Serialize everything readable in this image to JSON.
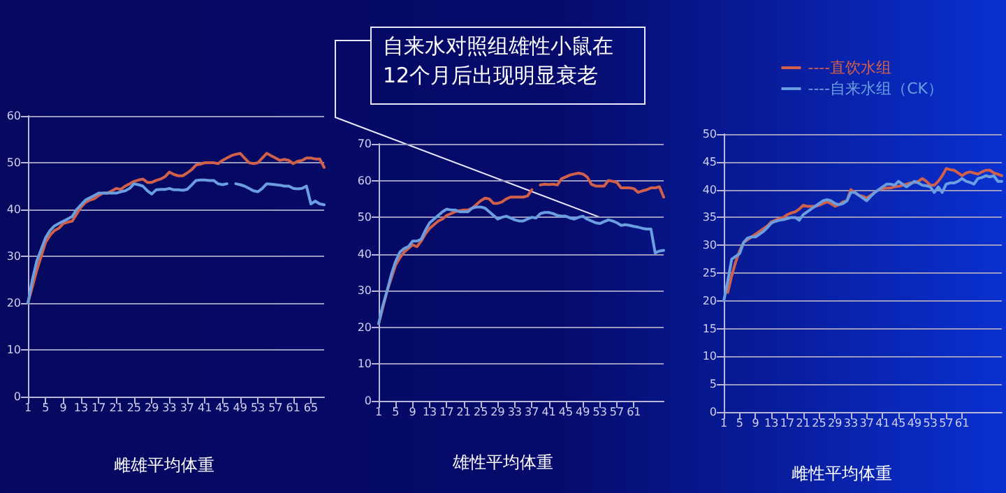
{
  "chart_data": [
    {
      "type": "line",
      "title": "雌雄平均体重",
      "categories": [
        "1",
        null,
        null,
        null,
        "5",
        null,
        null,
        null,
        "9",
        null,
        null,
        null,
        "13",
        null,
        null,
        null,
        "17",
        null,
        null,
        null,
        "21",
        null,
        null,
        null,
        "25",
        null,
        null,
        null,
        "29",
        null,
        null,
        null,
        "33",
        null,
        null,
        null,
        "37",
        null,
        null,
        null,
        "41",
        null,
        null,
        null,
        "45",
        null,
        null,
        null,
        "49",
        null,
        null,
        null,
        "53",
        null,
        null,
        null,
        "57",
        null,
        null,
        null,
        "61",
        null,
        null,
        null,
        "65",
        null,
        null,
        null
      ],
      "series": [
        {
          "color": "#d0604a",
          "values": [
            20,
            23.5,
            27,
            30,
            33,
            34.5,
            35.5,
            36,
            37,
            37.3,
            37.5,
            39,
            40.5,
            41.5,
            42,
            42.3,
            43,
            43.5,
            43.5,
            44,
            44.5,
            44.3,
            45,
            45.5,
            46,
            46.3,
            46.5,
            45.8,
            45.8,
            46.2,
            46.5,
            47,
            48,
            47.5,
            47.2,
            47.2,
            47.8,
            48.5,
            49.5,
            49.7,
            50,
            50,
            50,
            49.8,
            50.5,
            51,
            51.5,
            51.8,
            52,
            51,
            50,
            49.8,
            50,
            51,
            52,
            51.5,
            51,
            50.5,
            50.7,
            50.5,
            49.8,
            50.3,
            50.5,
            51,
            51,
            50.8,
            50.8,
            49
          ]
        },
        {
          "color": "#6a9ee0",
          "values": [
            20,
            25,
            29,
            31.5,
            34,
            35.5,
            36.5,
            37,
            37.5,
            38,
            38.5,
            40,
            41,
            42,
            42.5,
            43,
            43.5,
            43.5,
            43.5,
            43.5,
            43.5,
            43.8,
            44,
            44.5,
            45.5,
            45.3,
            45,
            44,
            43.3,
            44.2,
            44.3,
            44.3,
            44.5,
            44.2,
            44.2,
            44.1,
            44.3,
            45.2,
            46.2,
            46.3,
            46.3,
            46.2,
            46.2,
            45.5,
            45.3,
            45.5,
            null,
            45.5,
            45.3,
            45,
            44.5,
            44,
            43.8,
            44.5,
            45.5,
            45.4,
            45.3,
            45.2,
            45,
            45,
            44.5,
            44.4,
            44.5,
            45,
            41.2,
            41.8,
            41.2,
            41
          ]
        }
      ],
      "ylim": [
        0,
        60
      ],
      "yticks": [
        0,
        10,
        20,
        30,
        40,
        50,
        60
      ],
      "grid": "y",
      "marker": "none",
      "line_style": "solid"
    },
    {
      "type": "line",
      "title": "雄性平均体重",
      "categories": [
        "1",
        null,
        null,
        null,
        "5",
        null,
        null,
        null,
        "9",
        null,
        null,
        null,
        "13",
        null,
        null,
        null,
        "17",
        null,
        null,
        null,
        "21",
        null,
        null,
        null,
        "25",
        null,
        null,
        null,
        "29",
        null,
        null,
        null,
        "33",
        null,
        null,
        null,
        "37",
        null,
        null,
        null,
        "41",
        null,
        null,
        null,
        "45",
        null,
        null,
        null,
        "49",
        null,
        null,
        null,
        "53",
        null,
        null,
        null,
        "57",
        null,
        null,
        null,
        "61",
        null,
        null,
        null,
        null,
        null,
        null,
        null
      ],
      "series": [
        {
          "color": "#d0604a",
          "values": [
            21,
            25.5,
            30,
            33.5,
            37,
            39,
            40.5,
            41.5,
            42.5,
            42,
            43.5,
            45.5,
            47,
            48,
            49,
            49.5,
            50.5,
            51,
            51.5,
            51.8,
            52,
            52,
            52.5,
            53.5,
            54.5,
            55.2,
            55,
            53.8,
            53.8,
            54.2,
            55,
            55.5,
            55.5,
            55.5,
            55.5,
            55.8,
            57.5,
            null,
            58.8,
            59,
            58.9,
            59,
            58.8,
            60.5,
            61,
            61.5,
            61.8,
            62,
            61.8,
            61,
            59,
            58.5,
            58.5,
            58.5,
            60,
            59.8,
            59.5,
            58,
            58,
            58,
            57.8,
            56.8,
            57.2,
            57.5,
            58,
            58,
            58.3,
            55.5
          ]
        },
        {
          "color": "#6a9ee0",
          "values": [
            21,
            26,
            30,
            34.5,
            38,
            40.5,
            41.5,
            42,
            43.5,
            43.5,
            44,
            46.5,
            48.5,
            49.5,
            50.5,
            51.5,
            52.2,
            52,
            52,
            51.5,
            51.5,
            51.5,
            52.5,
            52.8,
            52.8,
            52.5,
            51.5,
            50.5,
            49.5,
            50,
            50.3,
            49.8,
            49.3,
            49,
            49,
            49.5,
            50,
            49.8,
            51,
            51.3,
            51.3,
            51,
            50.5,
            50.3,
            50.3,
            49.8,
            49.5,
            50,
            50.3,
            49.5,
            49,
            48.5,
            48.3,
            48.8,
            49.3,
            49,
            48.5,
            47.8,
            48,
            47.8,
            47.5,
            47.3,
            47,
            46.8,
            46.8,
            40.3,
            40.8,
            41
          ]
        }
      ],
      "ylim": [
        0,
        70
      ],
      "yticks": [
        0,
        10,
        20,
        30,
        40,
        50,
        60,
        70
      ],
      "grid": "y",
      "marker": "none",
      "line_style": "solid",
      "annotations": [
        {
          "text": "自来水对照组雄性小鼠在12个月后出现明显衰老",
          "x": "53",
          "y": 50
        }
      ]
    },
    {
      "type": "line",
      "title": "雌性平均体重",
      "categories": [
        "1",
        null,
        null,
        null,
        "5",
        null,
        null,
        null,
        "9",
        null,
        null,
        null,
        "13",
        null,
        null,
        null,
        "17",
        null,
        null,
        null,
        "21",
        null,
        null,
        null,
        "25",
        null,
        null,
        null,
        "29",
        null,
        null,
        null,
        "33",
        null,
        null,
        null,
        "37",
        null,
        null,
        null,
        "41",
        null,
        null,
        null,
        "45",
        null,
        null,
        null,
        "49",
        null,
        null,
        null,
        "53",
        null,
        null,
        null,
        "57",
        null,
        null,
        null,
        "61",
        null,
        null,
        null,
        null,
        null,
        null,
        null,
        null,
        null,
        null
      ],
      "series": [
        {
          "name": "----直饮水组",
          "color": "#d0604a",
          "values": [
            null,
            21.5,
            24.5,
            27,
            29,
            30.5,
            31,
            31.5,
            32,
            32.5,
            33,
            33.5,
            34.2,
            34.5,
            34.8,
            35,
            35.5,
            35.8,
            36,
            36.5,
            37.2,
            37,
            37,
            37,
            37.2,
            37.5,
            37.8,
            37.5,
            37,
            37.3,
            37.8,
            38,
            40,
            39.5,
            39,
            38.8,
            38.5,
            39,
            39.5,
            40,
            40.2,
            40.3,
            40.3,
            40.5,
            40.6,
            40.8,
            41,
            41.2,
            41.3,
            41.5,
            42,
            41.5,
            40.8,
            40.8,
            41.5,
            42.5,
            43.8,
            43.6,
            43.5,
            43,
            42.5,
            43,
            43.2,
            43,
            42.8,
            43.2,
            43.5,
            43.5,
            43,
            42.8,
            42.5
          ]
        },
        {
          "name": "----自来水组（CK）",
          "color": "#6a9ee0",
          "values": [
            20,
            23.5,
            27.5,
            28,
            28.5,
            30.5,
            31.3,
            31.5,
            31.5,
            32,
            32.5,
            33.2,
            34,
            34.3,
            34.5,
            34.6,
            34.8,
            35,
            35,
            34.5,
            35.5,
            36,
            36.5,
            37,
            37.5,
            38,
            38.2,
            38,
            37.5,
            37.3,
            37.5,
            38,
            39.5,
            39.5,
            39,
            38.5,
            38,
            38.8,
            39.5,
            40,
            40.5,
            41,
            41,
            40.8,
            41.5,
            41,
            40.5,
            41,
            41.5,
            41.2,
            40.8,
            40.7,
            40.5,
            39.5,
            40.5,
            39.5,
            41,
            41.2,
            41.2,
            41.5,
            42,
            41.5,
            41.3,
            41,
            42,
            42.2,
            42.5,
            42.3,
            42.5,
            41.5,
            41.5
          ]
        }
      ],
      "ylim": [
        0,
        50
      ],
      "yticks": [
        0,
        5,
        10,
        15,
        20,
        25,
        30,
        35,
        40,
        45,
        50
      ],
      "grid": "y",
      "marker": "none",
      "line_style": "solid",
      "legend": "top right"
    }
  ]
}
